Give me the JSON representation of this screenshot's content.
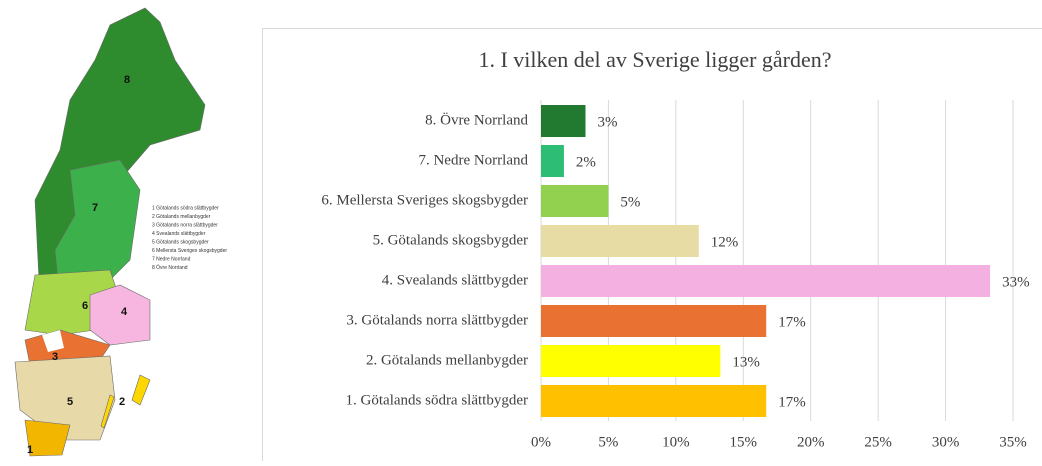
{
  "chart_data": {
    "type": "bar",
    "orientation": "horizontal",
    "title": "1. I vilken del av Sverige ligger gården?",
    "categories": [
      "8. Övre Norrland",
      "7. Nedre Norrland",
      "6. Mellersta Sveriges skogsbygder",
      "5. Götalands skogsbygder",
      "4. Svealands slättbygder",
      "3. Götalands norra slättbygder",
      "2. Götalands mellanbygder",
      "1. Götalands södra slättbygder"
    ],
    "values": [
      3.3,
      1.7,
      5.0,
      11.7,
      33.3,
      16.7,
      13.3,
      16.7
    ],
    "value_labels": [
      "3%",
      "2%",
      "5%",
      "12%",
      "33%",
      "17%",
      "13%",
      "17%"
    ],
    "colors": [
      "#217a2f",
      "#2dbd74",
      "#92d050",
      "#e6dca4",
      "#f4b0e0",
      "#e97132",
      "#ffff00",
      "#ffc000"
    ],
    "xlim": [
      0,
      35
    ],
    "xticks": [
      {
        "value": 0,
        "label": "0%"
      },
      {
        "value": 5,
        "label": "5%"
      },
      {
        "value": 10,
        "label": "10%"
      },
      {
        "value": 15,
        "label": "15%"
      },
      {
        "value": 20,
        "label": "20%"
      },
      {
        "value": 25,
        "label": "25%"
      },
      {
        "value": 30,
        "label": "30%"
      },
      {
        "value": 35,
        "label": "35%"
      }
    ],
    "grid": true
  },
  "map": {
    "region_labels": [
      "8",
      "7",
      "6",
      "4",
      "3",
      "5",
      "2",
      "1"
    ],
    "legend": [
      "1 Götalands södra slättbygder",
      "2 Götalands mellanbygder",
      "3 Götalands norra slättbygder",
      "4 Svealands slättbygder",
      "5 Götalands skogsbygder",
      "6 Mellersta Sveriges skogsbygder",
      "7 Nedre Norrland",
      "8 Övre Norrland"
    ]
  }
}
